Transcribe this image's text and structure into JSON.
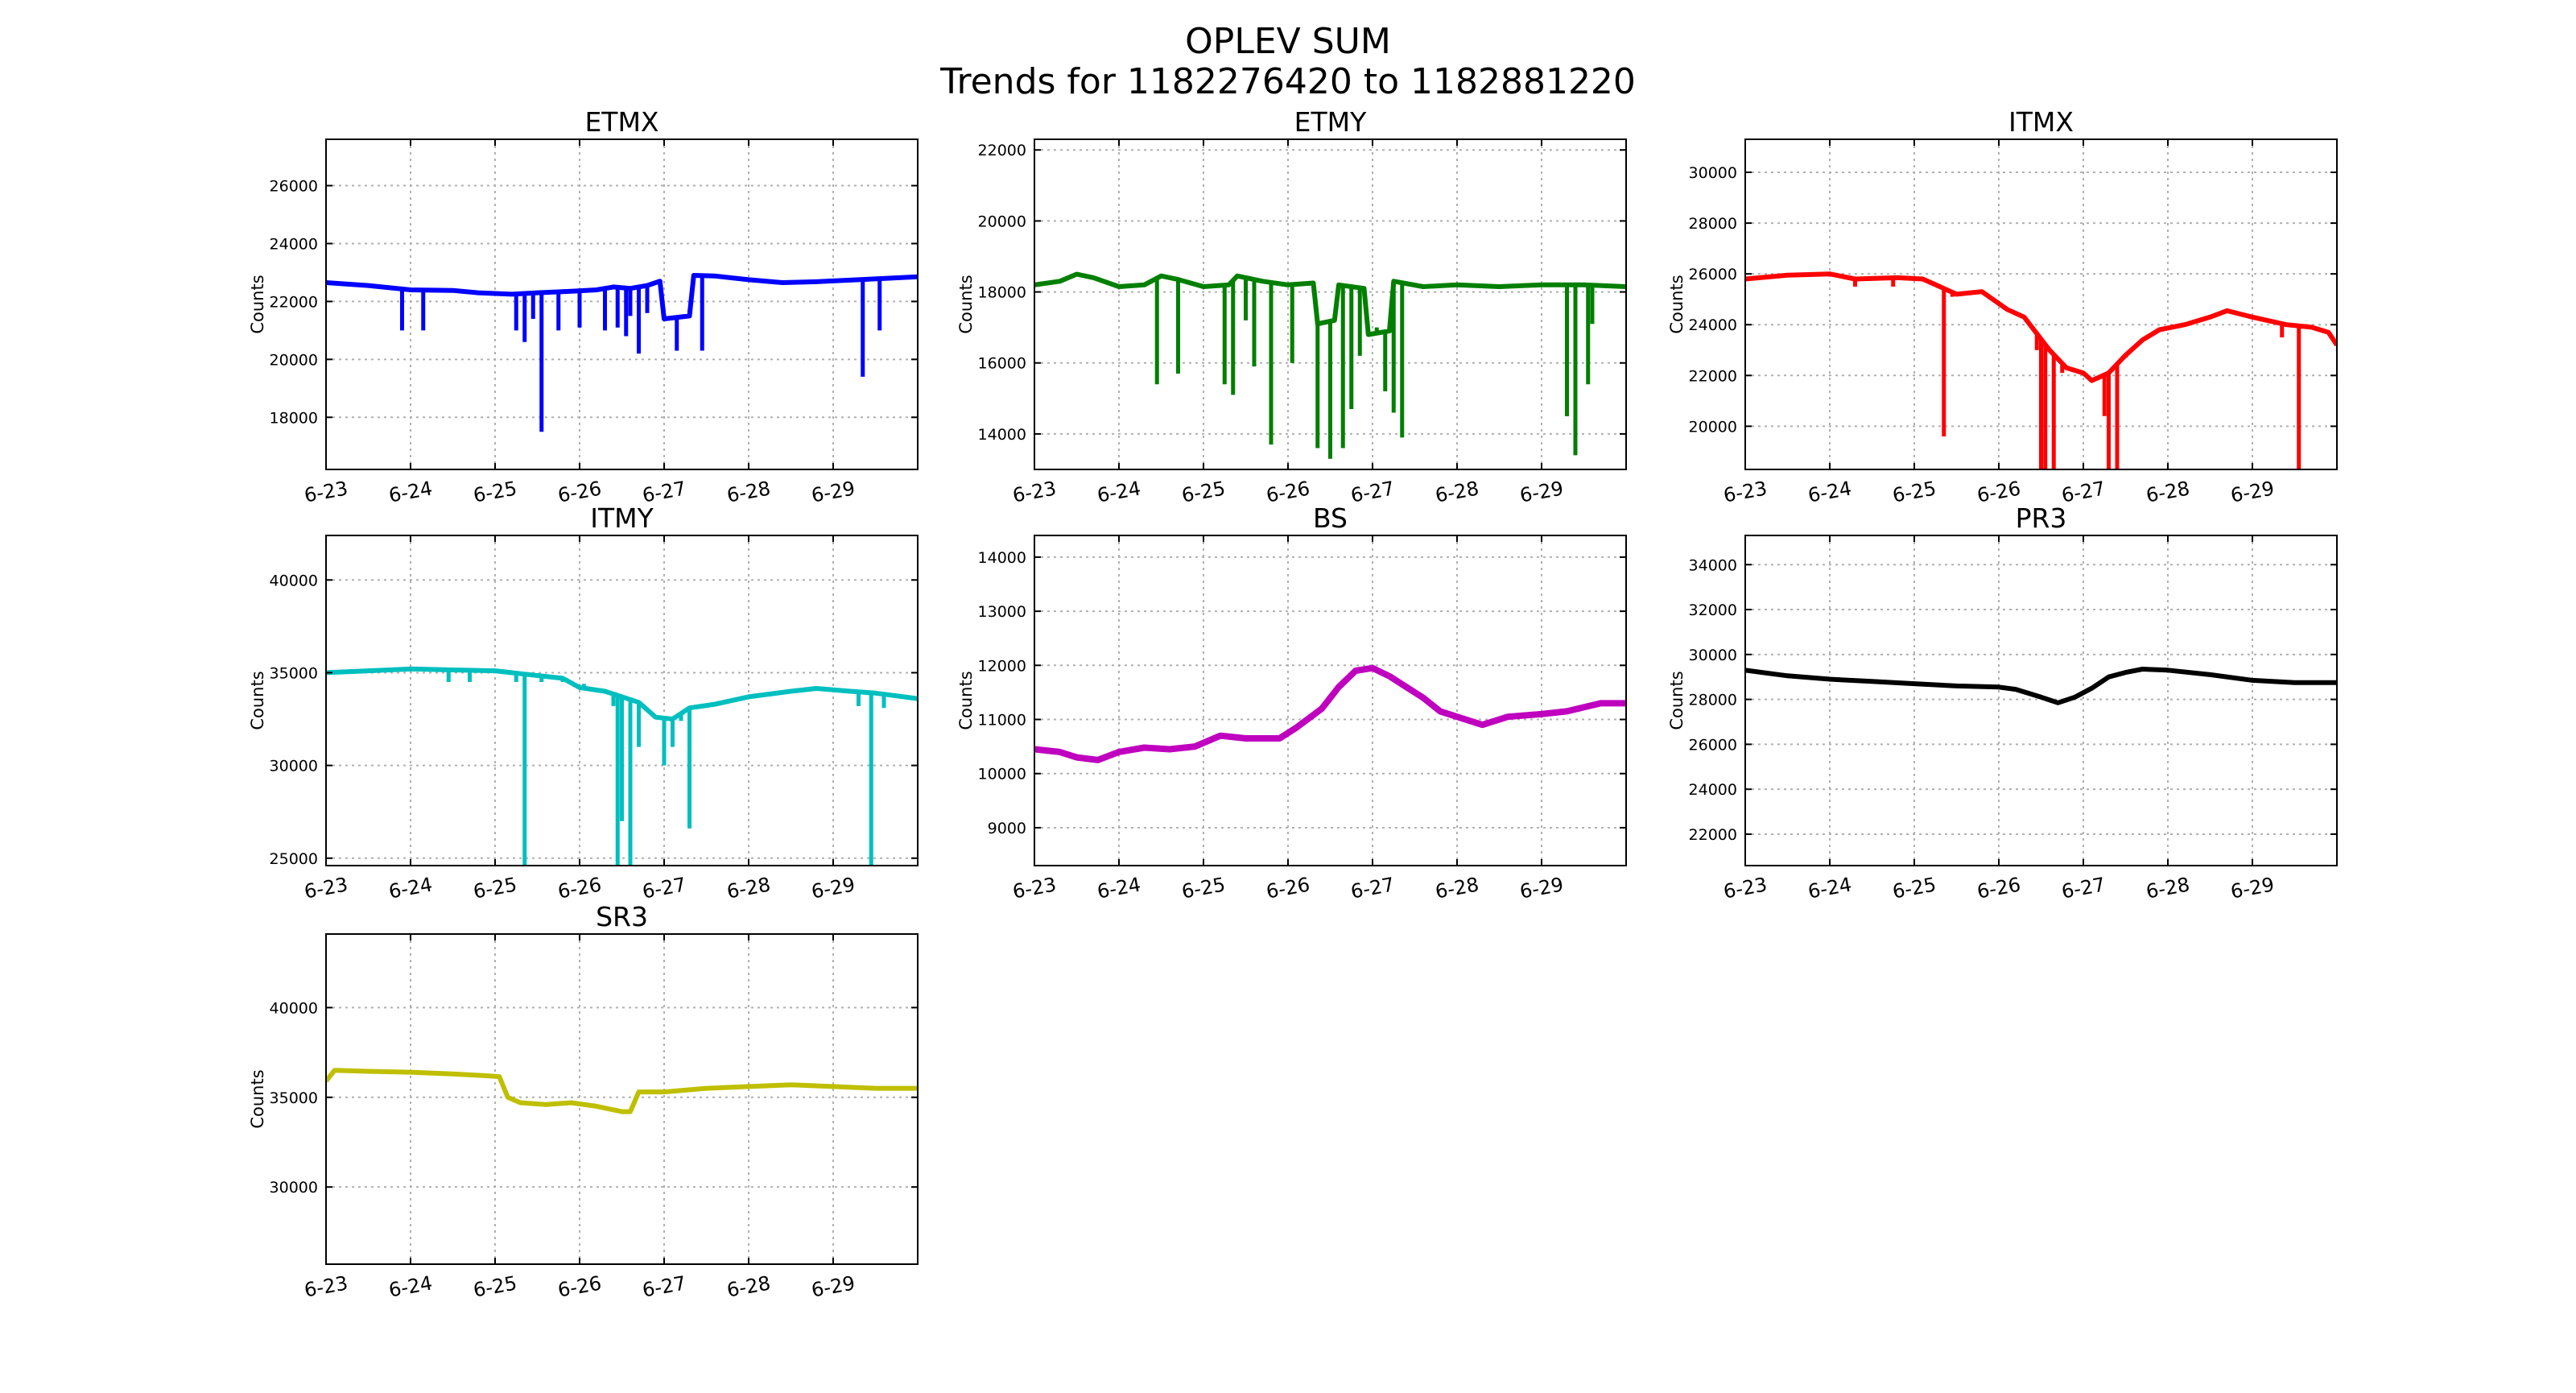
{
  "figure": {
    "title_line1": "OPLEV SUM",
    "title_line2": "Trends for 1182276420 to 1182881220"
  },
  "chart_data": [
    {
      "type": "line",
      "name": "ETMX",
      "title": "ETMX",
      "ylabel": "Counts",
      "xlabel": "",
      "color": "#0000ff",
      "grid": true,
      "xlim": [
        0,
        7
      ],
      "ylim": [
        16200,
        27600
      ],
      "xticks": [
        "6-23",
        "6-24",
        "6-25",
        "6-26",
        "6-27",
        "6-28",
        "6-29"
      ],
      "yticks": [
        18000,
        20000,
        22000,
        24000,
        26000
      ],
      "baseline": [
        [
          0,
          22650
        ],
        [
          0.5,
          22550
        ],
        [
          1,
          22400
        ],
        [
          1.5,
          22380
        ],
        [
          1.8,
          22300
        ],
        [
          2.2,
          22250
        ],
        [
          2.5,
          22300
        ],
        [
          2.9,
          22350
        ],
        [
          3.2,
          22400
        ],
        [
          3.4,
          22500
        ],
        [
          3.6,
          22450
        ],
        [
          3.8,
          22550
        ],
        [
          3.95,
          22700
        ],
        [
          4.0,
          21400
        ],
        [
          4.3,
          21500
        ],
        [
          4.35,
          22900
        ],
        [
          4.6,
          22880
        ],
        [
          5.0,
          22750
        ],
        [
          5.4,
          22650
        ],
        [
          5.8,
          22680
        ],
        [
          6.3,
          22750
        ],
        [
          7.0,
          22850
        ]
      ],
      "dips": [
        [
          0.9,
          21000
        ],
        [
          1.15,
          21000
        ],
        [
          2.25,
          21000
        ],
        [
          2.35,
          20600
        ],
        [
          2.45,
          21400
        ],
        [
          2.55,
          17500
        ],
        [
          2.75,
          21000
        ],
        [
          3.0,
          21100
        ],
        [
          3.3,
          21000
        ],
        [
          3.45,
          21100
        ],
        [
          3.55,
          20800
        ],
        [
          3.6,
          21500
        ],
        [
          3.7,
          20200
        ],
        [
          3.8,
          21600
        ],
        [
          4.15,
          20300
        ],
        [
          4.3,
          21700
        ],
        [
          4.45,
          20300
        ],
        [
          6.35,
          19400
        ],
        [
          6.55,
          21000
        ]
      ]
    },
    {
      "type": "line",
      "name": "ETMY",
      "title": "ETMY",
      "ylabel": "Counts",
      "xlabel": "",
      "color": "#007f00",
      "grid": true,
      "xlim": [
        0,
        7
      ],
      "ylim": [
        13000,
        22300
      ],
      "xticks": [
        "6-23",
        "6-24",
        "6-25",
        "6-26",
        "6-27",
        "6-28",
        "6-29"
      ],
      "yticks": [
        14000,
        16000,
        18000,
        20000,
        22000
      ],
      "baseline": [
        [
          0,
          18200
        ],
        [
          0.3,
          18300
        ],
        [
          0.5,
          18500
        ],
        [
          0.7,
          18400
        ],
        [
          1.0,
          18150
        ],
        [
          1.3,
          18200
        ],
        [
          1.5,
          18450
        ],
        [
          1.7,
          18350
        ],
        [
          2.0,
          18150
        ],
        [
          2.3,
          18200
        ],
        [
          2.4,
          18450
        ],
        [
          2.7,
          18300
        ],
        [
          3.0,
          18200
        ],
        [
          3.3,
          18250
        ],
        [
          3.35,
          17100
        ],
        [
          3.55,
          17200
        ],
        [
          3.6,
          18200
        ],
        [
          3.9,
          18100
        ],
        [
          3.95,
          16800
        ],
        [
          4.2,
          16900
        ],
        [
          4.25,
          18300
        ],
        [
          4.6,
          18150
        ],
        [
          5.0,
          18200
        ],
        [
          5.5,
          18150
        ],
        [
          6.0,
          18200
        ],
        [
          6.3,
          18200
        ],
        [
          6.5,
          18200
        ],
        [
          7.0,
          18150
        ]
      ],
      "dips": [
        [
          1.45,
          15400
        ],
        [
          1.7,
          15700
        ],
        [
          2.25,
          15400
        ],
        [
          2.35,
          15100
        ],
        [
          2.5,
          17200
        ],
        [
          2.6,
          15900
        ],
        [
          2.8,
          13700
        ],
        [
          3.05,
          16000
        ],
        [
          3.35,
          13600
        ],
        [
          3.5,
          13300
        ],
        [
          3.65,
          13600
        ],
        [
          3.75,
          14700
        ],
        [
          3.85,
          16200
        ],
        [
          4.05,
          17000
        ],
        [
          4.15,
          15200
        ],
        [
          4.25,
          14600
        ],
        [
          4.35,
          13900
        ],
        [
          6.3,
          14500
        ],
        [
          6.4,
          13400
        ],
        [
          6.55,
          15400
        ],
        [
          6.6,
          17100
        ]
      ]
    },
    {
      "type": "line",
      "name": "ITMX",
      "title": "ITMX",
      "ylabel": "Counts",
      "xlabel": "",
      "color": "#ff0000",
      "grid": true,
      "xlim": [
        0,
        7
      ],
      "ylim": [
        18300,
        31300
      ],
      "xticks": [
        "6-23",
        "6-24",
        "6-25",
        "6-26",
        "6-27",
        "6-28",
        "6-29"
      ],
      "yticks": [
        20000,
        22000,
        24000,
        26000,
        28000,
        30000
      ],
      "baseline": [
        [
          0,
          25800
        ],
        [
          0.5,
          25950
        ],
        [
          1.0,
          26000
        ],
        [
          1.3,
          25800
        ],
        [
          1.8,
          25850
        ],
        [
          2.1,
          25800
        ],
        [
          2.3,
          25500
        ],
        [
          2.5,
          25200
        ],
        [
          2.8,
          25300
        ],
        [
          3.1,
          24600
        ],
        [
          3.3,
          24300
        ],
        [
          3.6,
          23000
        ],
        [
          3.8,
          22300
        ],
        [
          4.0,
          22100
        ],
        [
          4.1,
          21800
        ],
        [
          4.3,
          22100
        ],
        [
          4.5,
          22800
        ],
        [
          4.7,
          23400
        ],
        [
          4.9,
          23800
        ],
        [
          5.2,
          24000
        ],
        [
          5.5,
          24300
        ],
        [
          5.7,
          24550
        ],
        [
          6.0,
          24300
        ],
        [
          6.4,
          24000
        ],
        [
          6.7,
          23900
        ],
        [
          6.9,
          23700
        ],
        [
          7.0,
          23200
        ]
      ],
      "dips": [
        [
          1.3,
          25500
        ],
        [
          1.75,
          25500
        ],
        [
          2.35,
          19600
        ],
        [
          2.45,
          25100
        ],
        [
          2.55,
          25200
        ],
        [
          3.2,
          24500
        ],
        [
          3.45,
          23000
        ],
        [
          3.5,
          18300
        ],
        [
          3.55,
          18300
        ],
        [
          3.65,
          18300
        ],
        [
          3.75,
          22100
        ],
        [
          4.25,
          20400
        ],
        [
          4.3,
          18300
        ],
        [
          4.4,
          18300
        ],
        [
          4.5,
          22700
        ],
        [
          6.35,
          23500
        ],
        [
          6.55,
          18300
        ]
      ]
    },
    {
      "type": "line",
      "name": "ITMY",
      "title": "ITMY",
      "ylabel": "Counts",
      "xlabel": "",
      "color": "#00bfbf",
      "grid": true,
      "xlim": [
        0,
        7
      ],
      "ylim": [
        24600,
        42400
      ],
      "xticks": [
        "6-23",
        "6-24",
        "6-25",
        "6-26",
        "6-27",
        "6-28",
        "6-29"
      ],
      "yticks": [
        25000,
        30000,
        35000,
        40000
      ],
      "baseline": [
        [
          0,
          35000
        ],
        [
          0.5,
          35100
        ],
        [
          1.0,
          35200
        ],
        [
          1.5,
          35150
        ],
        [
          2.0,
          35100
        ],
        [
          2.4,
          34900
        ],
        [
          2.8,
          34700
        ],
        [
          3.0,
          34200
        ],
        [
          3.3,
          34000
        ],
        [
          3.5,
          33700
        ],
        [
          3.7,
          33400
        ],
        [
          3.9,
          32600
        ],
        [
          4.1,
          32500
        ],
        [
          4.3,
          33100
        ],
        [
          4.6,
          33300
        ],
        [
          5.0,
          33700
        ],
        [
          5.5,
          34000
        ],
        [
          5.8,
          34150
        ],
        [
          6.2,
          34000
        ],
        [
          6.5,
          33900
        ],
        [
          7.0,
          33600
        ]
      ],
      "dips": [
        [
          1.45,
          34500
        ],
        [
          1.7,
          34500
        ],
        [
          2.25,
          34500
        ],
        [
          2.35,
          24600
        ],
        [
          2.55,
          34500
        ],
        [
          2.8,
          34500
        ],
        [
          3.05,
          34400
        ],
        [
          3.4,
          33200
        ],
        [
          3.45,
          24600
        ],
        [
          3.5,
          27000
        ],
        [
          3.6,
          24600
        ],
        [
          3.7,
          31000
        ],
        [
          4.0,
          30000
        ],
        [
          4.1,
          31000
        ],
        [
          4.2,
          32400
        ],
        [
          4.3,
          26600
        ],
        [
          6.3,
          33200
        ],
        [
          6.45,
          24600
        ],
        [
          6.6,
          33100
        ]
      ]
    },
    {
      "type": "line",
      "name": "BS",
      "title": "BS",
      "ylabel": "Counts",
      "xlabel": "",
      "color": "#bf00bf",
      "grid": true,
      "xlim": [
        0,
        7
      ],
      "ylim": [
        8300,
        14400
      ],
      "xticks": [
        "6-23",
        "6-24",
        "6-25",
        "6-26",
        "6-27",
        "6-28",
        "6-29"
      ],
      "yticks": [
        9000,
        10000,
        11000,
        12000,
        13000,
        14000
      ],
      "baseline": [
        [
          0,
          10450
        ],
        [
          0.3,
          10400
        ],
        [
          0.5,
          10300
        ],
        [
          0.75,
          10250
        ],
        [
          1.0,
          10400
        ],
        [
          1.3,
          10480
        ],
        [
          1.6,
          10450
        ],
        [
          1.9,
          10500
        ],
        [
          2.2,
          10700
        ],
        [
          2.5,
          10650
        ],
        [
          2.9,
          10650
        ],
        [
          3.1,
          10850
        ],
        [
          3.4,
          11200
        ],
        [
          3.6,
          11600
        ],
        [
          3.8,
          11900
        ],
        [
          4.0,
          11950
        ],
        [
          4.2,
          11800
        ],
        [
          4.4,
          11600
        ],
        [
          4.6,
          11400
        ],
        [
          4.8,
          11150
        ],
        [
          5.0,
          11050
        ],
        [
          5.3,
          10900
        ],
        [
          5.6,
          11050
        ],
        [
          6.0,
          11100
        ],
        [
          6.3,
          11150
        ],
        [
          6.7,
          11300
        ],
        [
          7.0,
          11300
        ]
      ],
      "dips": []
    },
    {
      "type": "line",
      "name": "PR3",
      "title": "PR3",
      "ylabel": "Counts",
      "xlabel": "",
      "color": "#000000",
      "grid": true,
      "xlim": [
        0,
        7
      ],
      "ylim": [
        20600,
        35300
      ],
      "xticks": [
        "6-23",
        "6-24",
        "6-25",
        "6-26",
        "6-27",
        "6-28",
        "6-29"
      ],
      "yticks": [
        22000,
        24000,
        26000,
        28000,
        30000,
        32000,
        34000
      ],
      "baseline": [
        [
          0,
          29300
        ],
        [
          0.5,
          29050
        ],
        [
          1.0,
          28900
        ],
        [
          1.5,
          28800
        ],
        [
          2.0,
          28700
        ],
        [
          2.5,
          28600
        ],
        [
          3.0,
          28550
        ],
        [
          3.2,
          28450
        ],
        [
          3.5,
          28100
        ],
        [
          3.7,
          27850
        ],
        [
          3.9,
          28100
        ],
        [
          4.1,
          28500
        ],
        [
          4.3,
          29000
        ],
        [
          4.5,
          29200
        ],
        [
          4.7,
          29350
        ],
        [
          5.0,
          29300
        ],
        [
          5.5,
          29100
        ],
        [
          6.0,
          28850
        ],
        [
          6.5,
          28750
        ],
        [
          7.0,
          28750
        ]
      ],
      "dips": []
    },
    {
      "type": "line",
      "name": "SR3",
      "title": "SR3",
      "ylabel": "Counts",
      "xlabel": "",
      "color": "#bfbf00",
      "grid": true,
      "xlim": [
        0,
        7
      ],
      "ylim": [
        25700,
        44100
      ],
      "xticks": [
        "6-23",
        "6-24",
        "6-25",
        "6-26",
        "6-27",
        "6-28",
        "6-29"
      ],
      "yticks": [
        30000,
        35000,
        40000
      ],
      "baseline": [
        [
          0,
          35900
        ],
        [
          0.1,
          36500
        ],
        [
          0.5,
          36450
        ],
        [
          1.0,
          36400
        ],
        [
          1.5,
          36300
        ],
        [
          1.9,
          36200
        ],
        [
          2.05,
          36150
        ],
        [
          2.15,
          35000
        ],
        [
          2.3,
          34700
        ],
        [
          2.6,
          34600
        ],
        [
          2.9,
          34700
        ],
        [
          3.2,
          34500
        ],
        [
          3.5,
          34200
        ],
        [
          3.6,
          34200
        ],
        [
          3.7,
          35300
        ],
        [
          4.0,
          35300
        ],
        [
          4.5,
          35500
        ],
        [
          5.0,
          35600
        ],
        [
          5.5,
          35700
        ],
        [
          6.0,
          35600
        ],
        [
          6.5,
          35500
        ],
        [
          7.0,
          35500
        ]
      ],
      "dips": []
    }
  ]
}
